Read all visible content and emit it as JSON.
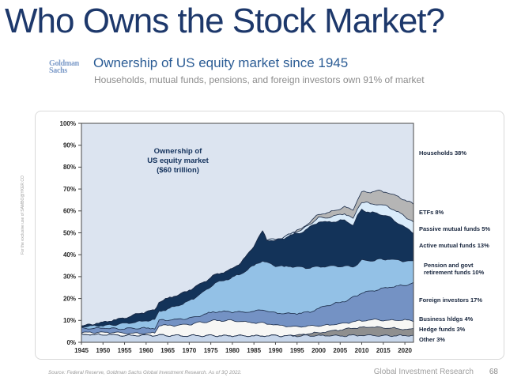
{
  "slide": {
    "title": "Who Owns the Stock Market?",
    "watermark": "For the exclusive use of SAMBO@YKER.CO",
    "source": "Source: Federal Reserve, Goldman Sachs Global Investment Research. As of 3Q 2022.",
    "footer_label": "Global Investment Research",
    "page_number": "68"
  },
  "header": {
    "logo_line1": "Goldman",
    "logo_line2": "Sachs",
    "title": "Ownership of US equity market since 1945",
    "subtitle": "Households, mutual funds, pensions, and foreign investors own 91% of market"
  },
  "chart_data": {
    "type": "area",
    "stacked": true,
    "annotation_lines": [
      "Ownership of",
      "US equity market",
      "($60 trillion)"
    ],
    "ylim": [
      0,
      100
    ],
    "x_range": [
      1945,
      2022
    ],
    "grid": false,
    "legend_position": "right",
    "y_tick_labels": [
      "100%",
      "90%",
      "80%",
      "70%",
      "60%",
      "50%",
      "40%",
      "30%",
      "20%",
      "10%",
      "0%"
    ],
    "x_tick_labels": [
      "1945",
      "1950",
      "1955",
      "1960",
      "1965",
      "1970",
      "1975",
      "1980",
      "1985",
      "1990",
      "1995",
      "2000",
      "2005",
      "2010",
      "2015",
      "2020"
    ],
    "outline_color": "#1b2c49",
    "plot_border_color": "#474747",
    "years": [
      1945,
      1947,
      1950,
      1953,
      1956,
      1959,
      1962,
      1963,
      1965,
      1968,
      1971,
      1974,
      1976,
      1979,
      1982,
      1985,
      1986,
      1987,
      1988,
      1990,
      1992,
      1994,
      1996,
      1998,
      2000,
      2002,
      2004,
      2006,
      2008,
      2009,
      2010,
      2012,
      2014,
      2016,
      2018,
      2020,
      2022
    ],
    "households": {
      "name": "Households",
      "label": "Households 38%",
      "color": "#dce4f0",
      "note": "fills remainder of stack up to 100%",
      "current_share_pct": 38
    },
    "series": [
      {
        "name": "Other",
        "label": "Other 3%",
        "current_share_pct": 3,
        "color": "#c7d6ea",
        "values": [
          3.5,
          3.5,
          3.5,
          3.3,
          3.2,
          3.2,
          3.2,
          3.2,
          3.2,
          3.0,
          3.0,
          3.0,
          3.0,
          3.0,
          3.0,
          3.0,
          3.0,
          3.0,
          3.0,
          3.0,
          3.0,
          3.0,
          3.0,
          3.0,
          3.0,
          3.0,
          3.0,
          3.0,
          3.2,
          3.2,
          3.2,
          3.2,
          3.0,
          3.0,
          3.0,
          3.0,
          3.0
        ]
      },
      {
        "name": "Hedge funds",
        "label": "Hedge funds 3%",
        "current_share_pct": 3,
        "color": "#8f8f8f",
        "values": [
          0,
          0,
          0,
          0,
          0,
          0,
          0,
          0,
          0,
          0,
          0,
          0,
          0,
          0,
          0,
          0,
          0,
          0,
          0,
          0,
          0,
          0.2,
          0.5,
          1.0,
          1.5,
          2.0,
          2.5,
          3.0,
          3.2,
          3.5,
          3.5,
          3.8,
          3.8,
          3.5,
          3.3,
          3.0,
          3.0
        ]
      },
      {
        "name": "Business hldgs",
        "label": "Business hldgs 4%",
        "current_share_pct": 4,
        "color": "#f7f7f5",
        "values": [
          1.0,
          1.0,
          1.0,
          1.0,
          1.0,
          1.0,
          1.0,
          4.5,
          4.5,
          4.8,
          5.5,
          6.5,
          7.0,
          7.0,
          6.5,
          6.0,
          6.0,
          5.8,
          5.5,
          5.0,
          4.5,
          4.0,
          3.8,
          3.5,
          3.0,
          2.8,
          2.8,
          2.8,
          3.0,
          3.0,
          3.0,
          3.2,
          3.5,
          3.5,
          3.8,
          4.0,
          4.0
        ]
      },
      {
        "name": "Foreign investors",
        "label": "Foreign investors 17%",
        "current_share_pct": 17,
        "color": "#7492c4",
        "values": [
          2.0,
          2.0,
          2.0,
          2.0,
          2.0,
          2.2,
          2.2,
          2.2,
          2.5,
          2.8,
          3.0,
          3.5,
          4.0,
          4.0,
          4.2,
          5.0,
          5.5,
          6.0,
          5.8,
          5.5,
          5.5,
          6.0,
          6.0,
          6.5,
          8.0,
          9.0,
          9.5,
          10.0,
          11.0,
          11.5,
          13.0,
          13.0,
          14.0,
          15.0,
          15.5,
          16.0,
          17.0
        ]
      },
      {
        "name": "Pension and govt retirement funds",
        "label": "Pension and govt retirement funds 10%",
        "current_share_pct": 10,
        "color": "#93c1e6",
        "values": [
          0.5,
          0.8,
          1.2,
          1.8,
          2.5,
          3.2,
          4.0,
          4.2,
          5.0,
          6.5,
          8.5,
          11.0,
          13.0,
          15.0,
          17.5,
          21.0,
          22.0,
          22.5,
          22.0,
          21.5,
          21.5,
          21.5,
          21.0,
          20.0,
          19.0,
          18.0,
          17.0,
          16.0,
          14.0,
          14.5,
          15.0,
          14.0,
          13.5,
          13.0,
          12.0,
          11.0,
          10.0
        ]
      },
      {
        "name": "Active mutual funds",
        "label": "Active mutual funds 13%",
        "current_share_pct": 13,
        "color": "#133359",
        "values": [
          0.5,
          0.8,
          1.5,
          2.2,
          3.0,
          3.8,
          4.2,
          4.2,
          4.8,
          5.0,
          4.8,
          4.2,
          3.8,
          3.5,
          5.0,
          9.0,
          11.0,
          13.5,
          10.5,
          11.5,
          13.0,
          14.5,
          16.0,
          18.5,
          20.5,
          20.0,
          20.5,
          21.0,
          19.0,
          22.0,
          23.0,
          22.0,
          21.0,
          19.5,
          17.5,
          15.5,
          13.0
        ]
      },
      {
        "name": "Passive mutual funds",
        "label": "Passive mutual funds 5%",
        "current_share_pct": 5,
        "color": "#d9ebfa",
        "values": [
          0,
          0,
          0,
          0,
          0,
          0,
          0,
          0,
          0,
          0,
          0,
          0,
          0,
          0,
          0,
          0,
          0,
          0,
          0,
          0.3,
          0.5,
          0.8,
          1.0,
          1.5,
          2.0,
          2.2,
          2.5,
          3.0,
          3.0,
          3.2,
          3.5,
          4.0,
          4.2,
          4.5,
          4.8,
          5.0,
          5.0
        ]
      },
      {
        "name": "ETFs",
        "label": "ETFs 8%",
        "current_share_pct": 8,
        "color": "#b5b5b5",
        "values": [
          0,
          0,
          0,
          0,
          0,
          0,
          0,
          0,
          0,
          0,
          0,
          0,
          0,
          0,
          0,
          0,
          0,
          0,
          0,
          0,
          0,
          0.2,
          0.5,
          1.0,
          1.5,
          2.0,
          2.5,
          3.0,
          4.0,
          4.2,
          4.5,
          5.5,
          6.0,
          6.5,
          7.0,
          7.5,
          8.0
        ]
      }
    ]
  },
  "legend": [
    {
      "lines": [
        "Households 38%"
      ]
    },
    {
      "lines": [
        "ETFs 8%"
      ]
    },
    {
      "lines": [
        "Passive mutual funds 5%"
      ]
    },
    {
      "lines": [
        "Active mutual funds 13%"
      ]
    },
    {
      "lines": [
        "Pension and govt",
        "retirement funds 10%"
      ]
    },
    {
      "lines": [
        "Foreign investors 17%"
      ]
    },
    {
      "lines": [
        "Business hldgs 4%"
      ]
    },
    {
      "lines": [
        "Hedge funds 3%"
      ]
    },
    {
      "lines": [
        "Other 3%"
      ]
    }
  ]
}
